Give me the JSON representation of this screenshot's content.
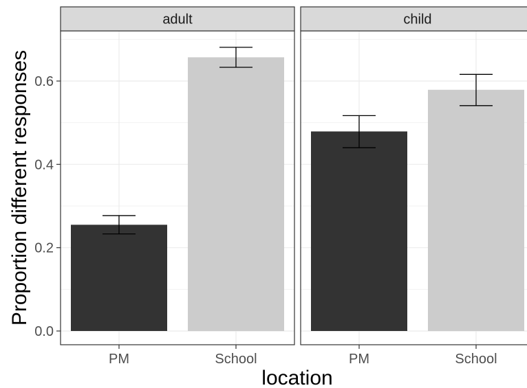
{
  "chart_data": {
    "type": "bar",
    "xlabel": "location",
    "ylabel": "Proportion different responses",
    "ylim": [
      0,
      0.72
    ],
    "y_ticks": [
      0.0,
      0.2,
      0.4,
      0.6
    ],
    "y_tick_labels": [
      "0.0",
      "0.2",
      "0.4",
      "0.6"
    ],
    "categories": [
      "PM",
      "School"
    ],
    "bar_colors": [
      "#333333",
      "#cccccc"
    ],
    "grid": true,
    "legend": "none",
    "facets": [
      {
        "label": "adult",
        "values": [
          0.255,
          0.657
        ],
        "error_low": [
          0.233,
          0.633
        ],
        "error_high": [
          0.277,
          0.681
        ]
      },
      {
        "label": "child",
        "values": [
          0.479,
          0.579
        ],
        "error_low": [
          0.44,
          0.541
        ],
        "error_high": [
          0.517,
          0.616
        ]
      }
    ]
  }
}
